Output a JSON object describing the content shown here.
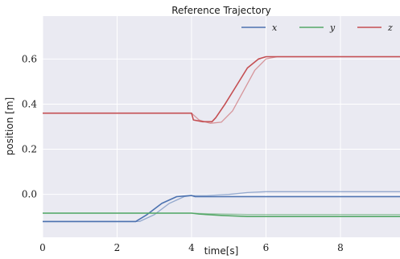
{
  "chart_data": {
    "type": "line",
    "title": "Reference Trajectory",
    "xlabel": "time[s]",
    "ylabel": "position [m]",
    "xlim": [
      0,
      9.6
    ],
    "ylim": [
      -0.19,
      0.79
    ],
    "xticks": [
      0,
      2,
      4,
      6,
      8
    ],
    "yticks": [
      0.0,
      0.2,
      0.4,
      0.6
    ],
    "ytick_labels": [
      "0.0",
      "0.2",
      "0.4",
      "0.6"
    ],
    "grid": true,
    "legend_position": "top-right",
    "background_color": "#eaeaf2",
    "series": [
      {
        "name": "x",
        "color": "#4c72b0",
        "style": "solid",
        "points": [
          [
            0,
            -0.12
          ],
          [
            2.5,
            -0.12
          ],
          [
            2.8,
            -0.09
          ],
          [
            3.2,
            -0.04
          ],
          [
            3.6,
            -0.01
          ],
          [
            4.0,
            -0.005
          ],
          [
            4.1,
            -0.01
          ],
          [
            9.6,
            -0.01
          ]
        ]
      },
      {
        "name": "x reference",
        "color": "#4c72b0",
        "style": "faint",
        "points": [
          [
            0,
            -0.12
          ],
          [
            2.6,
            -0.12
          ],
          [
            3.0,
            -0.09
          ],
          [
            3.4,
            -0.04
          ],
          [
            3.8,
            -0.01
          ],
          [
            4.0,
            -0.005
          ],
          [
            4.4,
            -0.005
          ],
          [
            5.0,
            0.0
          ],
          [
            5.5,
            0.008
          ],
          [
            6.0,
            0.012
          ],
          [
            9.6,
            0.012
          ]
        ]
      },
      {
        "name": "y",
        "color": "#55a868",
        "style": "solid",
        "points": [
          [
            0,
            -0.083
          ],
          [
            4.0,
            -0.083
          ],
          [
            4.2,
            -0.087
          ],
          [
            4.8,
            -0.093
          ],
          [
            5.5,
            -0.098
          ],
          [
            9.6,
            -0.098
          ]
        ]
      },
      {
        "name": "y reference",
        "color": "#55a868",
        "style": "faint",
        "points": [
          [
            0,
            -0.083
          ],
          [
            4.0,
            -0.083
          ],
          [
            4.5,
            -0.086
          ],
          [
            5.5,
            -0.089
          ],
          [
            9.6,
            -0.089
          ]
        ]
      },
      {
        "name": "z",
        "color": "#c44e52",
        "style": "solid",
        "points": [
          [
            0,
            0.36
          ],
          [
            4.0,
            0.36
          ],
          [
            4.05,
            0.33
          ],
          [
            4.3,
            0.322
          ],
          [
            4.55,
            0.322
          ],
          [
            4.65,
            0.34
          ],
          [
            4.9,
            0.4
          ],
          [
            5.2,
            0.48
          ],
          [
            5.5,
            0.56
          ],
          [
            5.8,
            0.6
          ],
          [
            6.0,
            0.61
          ],
          [
            9.6,
            0.61
          ]
        ]
      },
      {
        "name": "z reference",
        "color": "#c44e52",
        "style": "faint",
        "points": [
          [
            0,
            0.36
          ],
          [
            4.0,
            0.36
          ],
          [
            4.2,
            0.33
          ],
          [
            4.5,
            0.315
          ],
          [
            4.8,
            0.32
          ],
          [
            5.1,
            0.37
          ],
          [
            5.4,
            0.46
          ],
          [
            5.7,
            0.55
          ],
          [
            6.0,
            0.6
          ],
          [
            6.3,
            0.61
          ],
          [
            9.6,
            0.61
          ]
        ]
      }
    ],
    "legend": [
      {
        "label": "x",
        "color": "#4c72b0"
      },
      {
        "label": "y",
        "color": "#55a868"
      },
      {
        "label": "z",
        "color": "#c44e52"
      }
    ]
  }
}
